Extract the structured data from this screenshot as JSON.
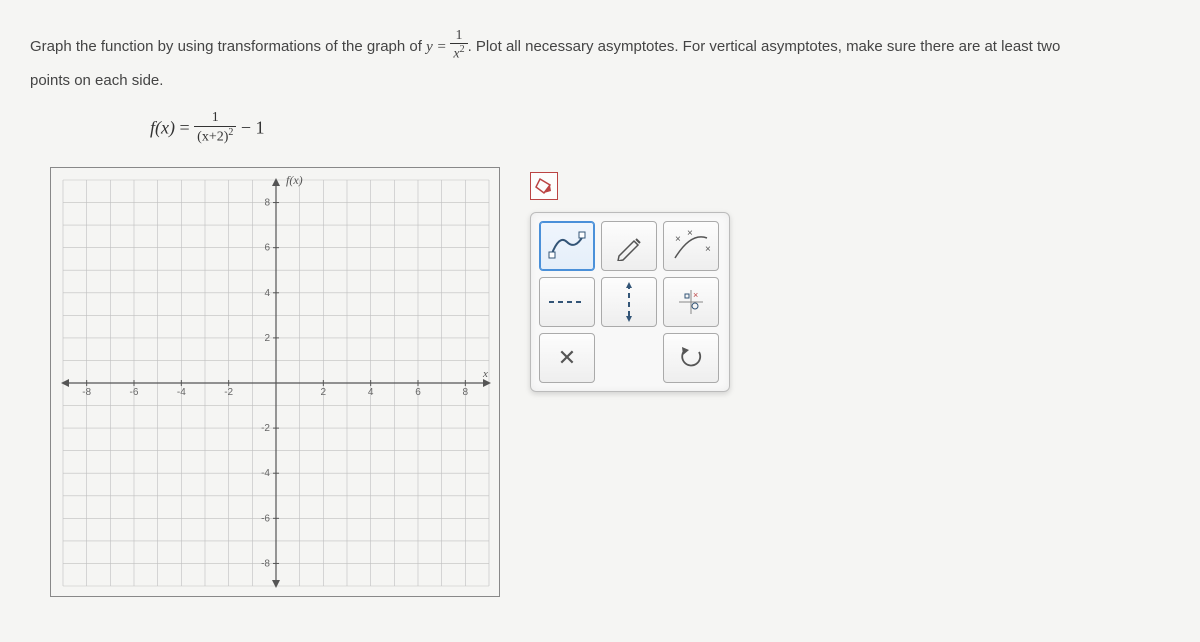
{
  "question": {
    "part1": "Graph the function by using transformations of the graph of ",
    "base_eq_lhs": "y",
    "base_eq_eq": " = ",
    "base_frac_num": "1",
    "base_frac_den_var": "x",
    "base_frac_den_exp": "2",
    "part2": ". Plot all necessary asymptotes. For vertical asymptotes, make sure there are at least two",
    "part3": "points on each side."
  },
  "equation": {
    "lhs": "f(x)",
    "eq": " = ",
    "frac_num": "1",
    "frac_den_open": "(",
    "frac_den_var": "x",
    "frac_den_plus": "+2)",
    "frac_den_exp": "2",
    "tail": " − 1"
  },
  "chart": {
    "type": "cartesian-grid",
    "xlim": [
      -9,
      9
    ],
    "ylim": [
      -9,
      9
    ],
    "xtick_step": 1,
    "ytick_step": 1,
    "xlabel_ticks": [
      -8,
      -6,
      -4,
      -2,
      2,
      4,
      6,
      8
    ],
    "ylabel_ticks": [
      -8,
      -6,
      -4,
      -2,
      2,
      4,
      6,
      8
    ],
    "y_axis_label": "f(x)",
    "x_axis_label": "x",
    "grid_color": "#bfbfbf",
    "axis_color": "#555555",
    "arrow_color": "#555555",
    "text_color": "#666666",
    "background": "transparent"
  },
  "toolbar": {
    "fill_button": "fill-shape",
    "tools": [
      {
        "name": "curve-tool",
        "selected": true
      },
      {
        "name": "pencil-tool",
        "selected": false
      },
      {
        "name": "line-points-tool",
        "selected": false
      },
      {
        "name": "h-asymptote-tool",
        "selected": false
      },
      {
        "name": "v-asymptote-tool",
        "selected": false
      },
      {
        "name": "remove-point-tool",
        "selected": false
      },
      {
        "name": "clear-tool",
        "selected": false
      },
      {
        "name": "empty",
        "selected": false
      },
      {
        "name": "undo-tool",
        "selected": false
      }
    ]
  }
}
